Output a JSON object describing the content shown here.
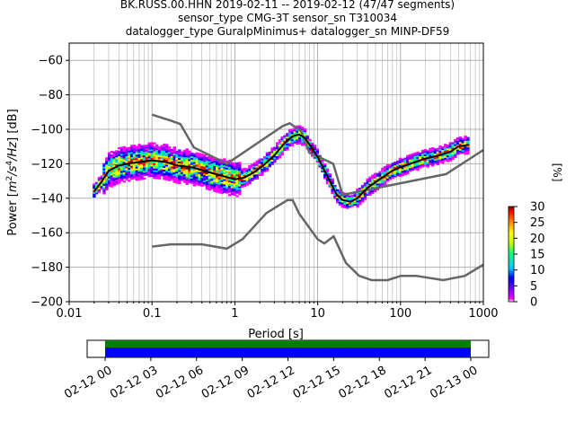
{
  "chart_data": {
    "type": "heatmap",
    "title_lines": [
      "BK.RUSS.00.HHN   2019-02-11 -- 2019-02-12  (47/47 segments)",
      "sensor_type CMG-3T sensor_sn T310034",
      "datalogger_type GuralpMinimus+ datalogger_sn MINP-DF59"
    ],
    "xlabel": "Period [s]",
    "ylabel_parts": {
      "a": "Power [",
      "b": "m",
      "c": "2",
      "d": "/s",
      "e": "4",
      "f": "/Hz",
      "g": "] [dB]"
    },
    "xscale": "log",
    "xlim": [
      0.01,
      1000
    ],
    "ylim": [
      -200,
      -50
    ],
    "x_ticks": [
      {
        "v": 0.01,
        "label": "0.01"
      },
      {
        "v": 0.1,
        "label": "0.1"
      },
      {
        "v": 1,
        "label": "1"
      },
      {
        "v": 10,
        "label": "10"
      },
      {
        "v": 100,
        "label": "100"
      },
      {
        "v": 1000,
        "label": "1000"
      }
    ],
    "y_ticks": [
      {
        "v": -60,
        "label": "−60"
      },
      {
        "v": -80,
        "label": "−80"
      },
      {
        "v": -100,
        "label": "−100"
      },
      {
        "v": -120,
        "label": "−120"
      },
      {
        "v": -140,
        "label": "−140"
      },
      {
        "v": -160,
        "label": "−160"
      },
      {
        "v": -180,
        "label": "−180"
      },
      {
        "v": -200,
        "label": "−200"
      }
    ],
    "grid": true,
    "nhnm": {
      "period": [
        0.1,
        0.17,
        0.22,
        0.32,
        0.8,
        3.8,
        4.6,
        6.3,
        7.9,
        15.4,
        20,
        354.8,
        1000
      ],
      "power": [
        -91.5,
        -95,
        -97,
        -110.5,
        -120,
        -98,
        -96.5,
        -101,
        -113.5,
        -120,
        -138,
        -126,
        -112
      ]
    },
    "nlnm": {
      "period": [
        0.1,
        0.17,
        0.4,
        0.8,
        1.24,
        2.4,
        4.3,
        5,
        6,
        10,
        12,
        15.6,
        21.9,
        31.6,
        45,
        70,
        101,
        154,
        328,
        600,
        1000
      ],
      "power": [
        -168,
        -166.7,
        -166.7,
        -169.2,
        -163.7,
        -148.6,
        -141.1,
        -141.1,
        -149,
        -163.8,
        -166.2,
        -162.1,
        -177.5,
        -185,
        -187.5,
        -187.5,
        -185,
        -185,
        -187.5,
        -185,
        -178.5
      ]
    },
    "mode_curve": {
      "period": [
        0.02,
        0.025,
        0.03,
        0.04,
        0.05,
        0.07,
        0.1,
        0.15,
        0.2,
        0.3,
        0.5,
        0.7,
        1,
        1.3,
        1.7,
        2.2,
        3,
        4,
        5,
        6,
        7,
        8,
        10,
        13,
        17,
        20,
        25,
        30,
        40,
        60,
        80,
        100,
        150,
        200,
        300,
        400,
        500,
        650
      ],
      "power": [
        -136,
        -130,
        -124,
        -121,
        -120,
        -119,
        -118,
        -119,
        -121,
        -122,
        -125,
        -127,
        -129,
        -128,
        -125,
        -121,
        -115,
        -108,
        -104,
        -103,
        -105,
        -109,
        -116,
        -127,
        -138,
        -141,
        -142,
        -140,
        -134,
        -128,
        -124,
        -122,
        -119,
        -117,
        -115,
        -113,
        -110,
        -109
      ]
    },
    "colorbar": {
      "label": "[%]",
      "min": 0,
      "max": 30,
      "ticks": [
        {
          "v": 0,
          "label": "0"
        },
        {
          "v": 5,
          "label": "5"
        },
        {
          "v": 10,
          "label": "10"
        },
        {
          "v": 15,
          "label": "15"
        },
        {
          "v": 20,
          "label": "20"
        },
        {
          "v": 25,
          "label": "25"
        },
        {
          "v": 30,
          "label": "30"
        }
      ],
      "colors": [
        "#ffffff",
        "#ff00ff",
        "#8000ff",
        "#0000ff",
        "#00c8ff",
        "#00ff80",
        "#c8ff00",
        "#ffff00",
        "#ff8000",
        "#ff0000",
        "#800000"
      ]
    },
    "timeline": {
      "tick_labels": [
        "02-12 00",
        "02-12 03",
        "02-12 06",
        "02-12 09",
        "02-12 12",
        "02-12 15",
        "02-12 18",
        "02-12 21",
        "02-13 00"
      ],
      "data_coverage": [
        0.0,
        1.0
      ],
      "colors": {
        "data": "#0000ff",
        "gaps": "#008000"
      }
    }
  }
}
